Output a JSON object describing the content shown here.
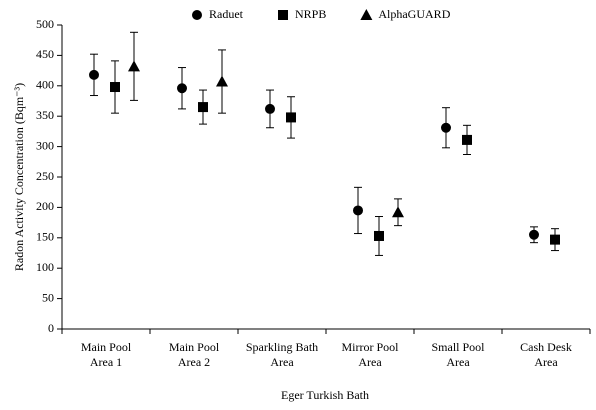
{
  "chart_data": {
    "type": "errorbar-scatter",
    "ylabel": "Radon Activity Concentration (Bqm⁻³)",
    "xlabel": "Eger Turkish Bath",
    "categories": [
      "Main Pool Area 1",
      "Main Pool Area 2",
      "Sparkling Bath Area",
      "Mirror Pool Area",
      "Small Pool Area",
      "Cash Desk Area"
    ],
    "series": [
      {
        "name": "Raduet",
        "color": "#000000",
        "marker": "circle",
        "values": [
          418,
          396,
          362,
          195,
          331,
          155
        ],
        "errors": [
          34,
          34,
          31,
          38,
          33,
          13
        ]
      },
      {
        "name": "NRPB",
        "color": "#000000",
        "marker": "square",
        "values": [
          398,
          365,
          348,
          153,
          311,
          147
        ],
        "errors": [
          43,
          28,
          34,
          32,
          24,
          18
        ]
      },
      {
        "name": "AlphaGUARD",
        "color": "#000000",
        "marker": "triangle",
        "values": [
          432,
          407,
          null,
          192,
          null,
          null
        ],
        "errors": [
          56,
          52,
          null,
          22,
          null,
          null
        ]
      }
    ],
    "ylim": [
      0,
      500
    ],
    "yticks": [
      0,
      50,
      100,
      150,
      200,
      250,
      300,
      350,
      400,
      450,
      500
    ],
    "grid": false,
    "legend": "top"
  }
}
